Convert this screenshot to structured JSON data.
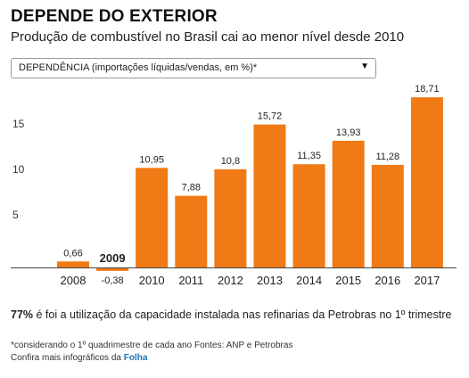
{
  "header": {
    "title": "DEPENDE DO EXTERIOR",
    "subtitle": "Produção de combustível no Brasil cai ao menor nível desde 2010"
  },
  "selector": {
    "selected": "DEPENDÊNCIA (importações líquidas/vendas, em %)*"
  },
  "chart_data": {
    "type": "bar",
    "categories": [
      "2008",
      "2009",
      "2010",
      "2011",
      "2012",
      "2013",
      "2014",
      "2015",
      "2016",
      "2017"
    ],
    "values": [
      0.66,
      -0.38,
      10.95,
      7.88,
      10.8,
      15.72,
      11.35,
      13.93,
      11.28,
      18.71
    ],
    "value_labels": [
      "0,66",
      "-0,38",
      "10,95",
      "7,88",
      "10,8",
      "15,72",
      "11,35",
      "13,93",
      "11,28",
      "18,71"
    ],
    "yticks": [
      "5",
      "10",
      "15"
    ],
    "ytick_values": [
      5,
      10,
      15
    ],
    "ylim": [
      0,
      20
    ],
    "bar_color": "#f07a16",
    "grid": false,
    "xlabel": "",
    "ylabel": ""
  },
  "note": {
    "highlight": "77%",
    "text": " é foi a utilização da capacidade instalada nas refinarias da Petrobras no 1º trimestre"
  },
  "footer": {
    "source": "*considerando o 1º quadrimestre de cada ano Fontes: ANP e Petrobras",
    "more_prefix": "Confira mais infográficos da ",
    "more_link": "Folha"
  }
}
